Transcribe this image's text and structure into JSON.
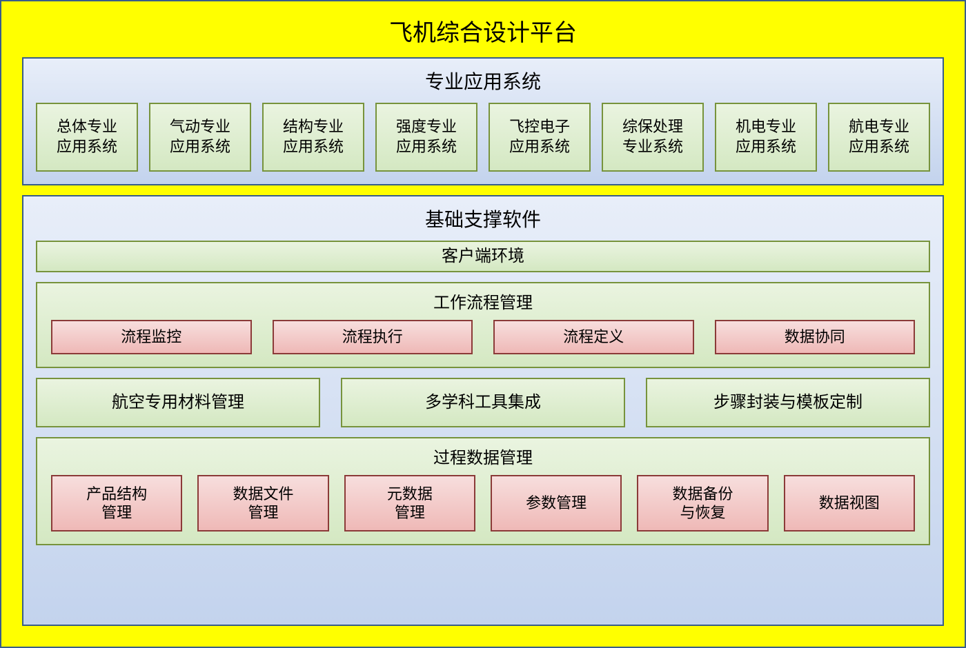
{
  "title": "飞机综合设计平台",
  "panels": {
    "apps": {
      "title": "专业应用系统",
      "items": [
        "总体专业\n应用系统",
        "气动专业\n应用系统",
        "结构专业\n应用系统",
        "强度专业\n应用系统",
        "飞控电子\n应用系统",
        "综保处理\n专业系统",
        "机电专业\n应用系统",
        "航电专业\n应用系统"
      ]
    },
    "base": {
      "title": "基础支撑软件",
      "client_env": "客户端环境",
      "workflow": {
        "title": "工作流程管理",
        "items": [
          "流程监控",
          "流程执行",
          "流程定义",
          "数据协同"
        ]
      },
      "mid_row": [
        "航空专用材料管理",
        "多学科工具集成",
        "步骤封装与模板定制"
      ],
      "process_data": {
        "title": "过程数据管理",
        "items": [
          "产品结构\n管理",
          "数据文件\n管理",
          "元数据\n管理",
          "参数管理",
          "数据备份\n与恢复",
          "数据视图"
        ]
      }
    }
  },
  "style": {
    "outer_bg": "#ffff00",
    "outer_border": "#385d8a",
    "blue_grad_top": "#e8eef9",
    "blue_grad_bot": "#c3d3ed",
    "blue_border": "#385d8a",
    "green_grad_top": "#eaf4e0",
    "green_grad_bot": "#d4e8c2",
    "green_border": "#77933c",
    "pink_grad_top": "#f7dedd",
    "pink_grad_bot": "#efb9b7",
    "pink_border": "#8b3a38",
    "title_fontsize": 34,
    "panel_title_fontsize": 28,
    "box_fontsize": 22
  }
}
